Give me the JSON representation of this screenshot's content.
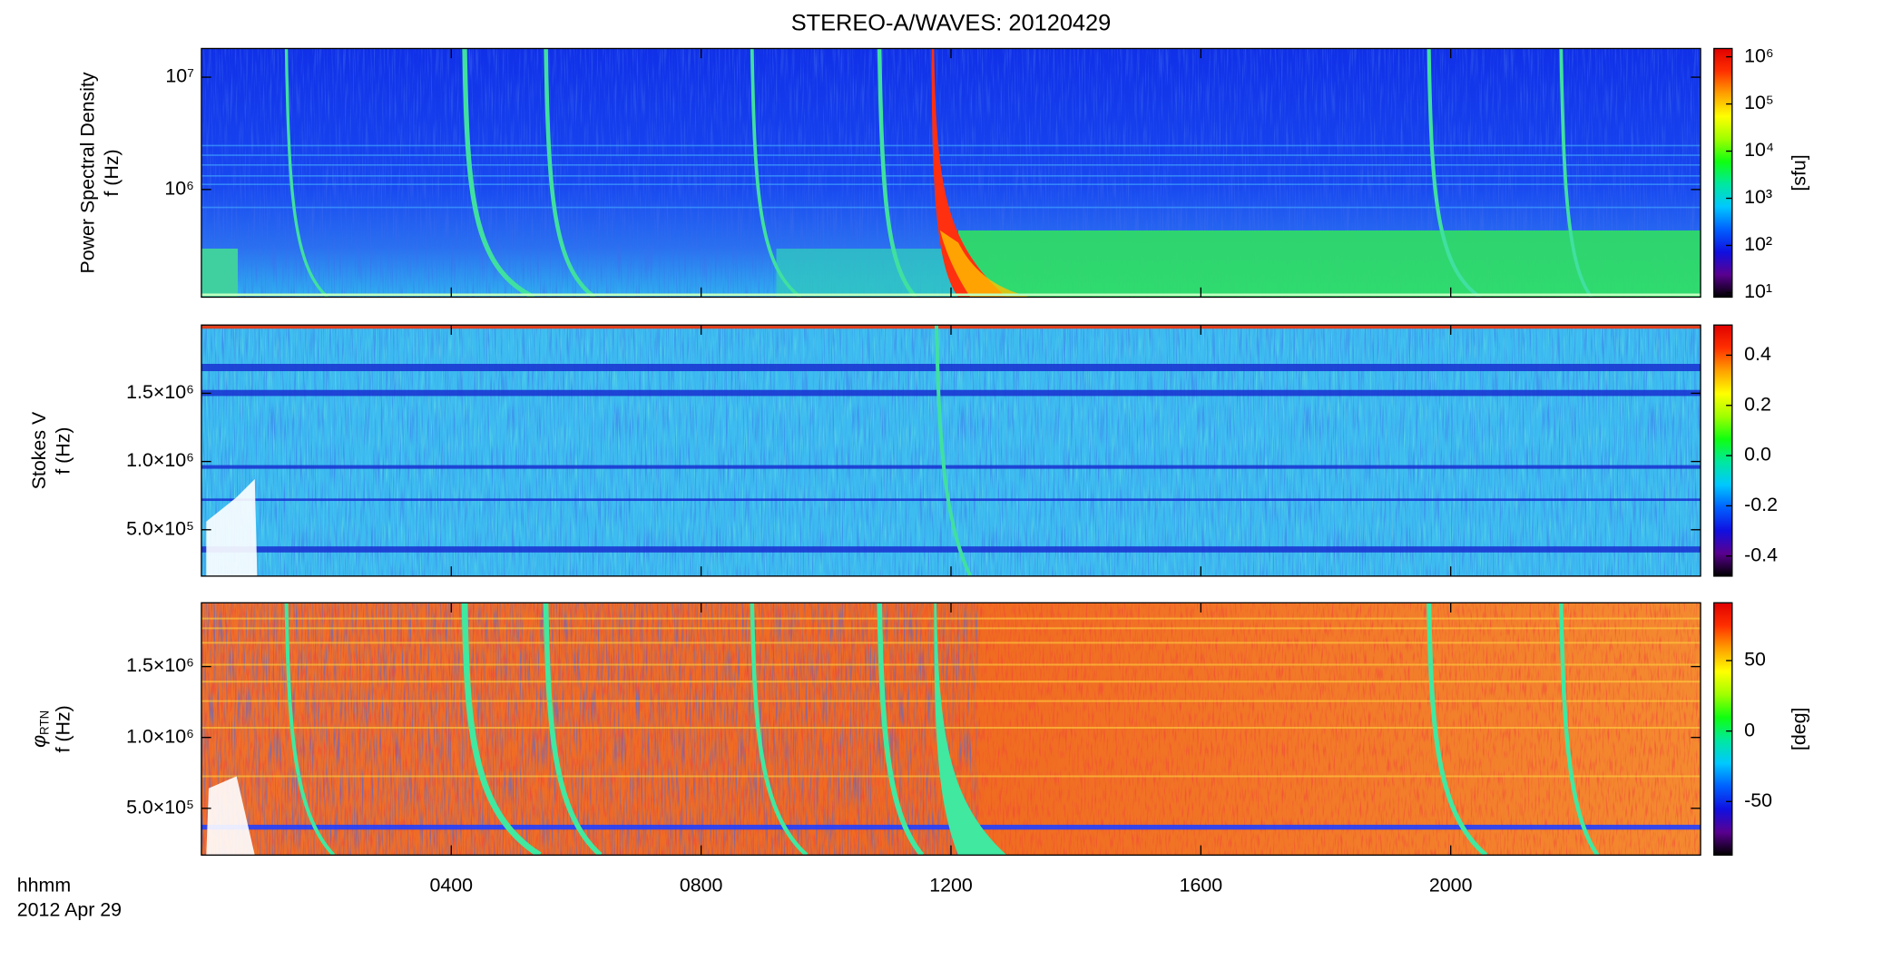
{
  "chart_data": {
    "type": "heatmap",
    "title": "STEREO-A/WAVES: 20120429",
    "xlabel": "hhmm",
    "date": "2012 Apr 29",
    "xlim": [
      0,
      24
    ],
    "xticks": [
      {
        "value": 4,
        "label": "0400"
      },
      {
        "value": 8,
        "label": "0800"
      },
      {
        "value": 12,
        "label": "1200"
      },
      {
        "value": 16,
        "label": "1600"
      },
      {
        "value": 20,
        "label": "2000"
      }
    ],
    "colorscale": [
      "#000000",
      "#5a0090",
      "#1010e0",
      "#0060ff",
      "#00c8ff",
      "#00e8a0",
      "#10ff10",
      "#a0ff00",
      "#ffff00",
      "#ffa000",
      "#ff3000",
      "#e00000"
    ],
    "panels": [
      {
        "ylabel": "Power Spectral Density",
        "ylabel2": "f (Hz)",
        "ylog": true,
        "ylim": [
          110000,
          18000000
        ],
        "yticks": [
          {
            "value": 1000000,
            "label": "10⁶"
          },
          {
            "value": 10000000,
            "label": "10⁷"
          }
        ],
        "clog": true,
        "clim": [
          8,
          1500000
        ],
        "cticks": [
          {
            "value": 10,
            "label": "10¹"
          },
          {
            "value": 100,
            "label": "10²"
          },
          {
            "value": 1000,
            "label": "10³"
          },
          {
            "value": 10000,
            "label": "10⁴"
          },
          {
            "value": 100000,
            "label": "10⁵"
          },
          {
            "value": 1000000,
            "label": "10⁶"
          }
        ],
        "clabel": "[sfu]"
      },
      {
        "ylabel": "Stokes V",
        "ylabel2": "f (Hz)",
        "ylim": [
          160000,
          2000000
        ],
        "yticks": [
          {
            "value": 500000,
            "label": "5.0×10⁵"
          },
          {
            "value": 1000000,
            "label": "1.0×10⁶"
          },
          {
            "value": 1500000,
            "label": "1.5×10⁶"
          }
        ],
        "clim": [
          -0.48,
          0.52
        ],
        "cticks": [
          -0.4,
          -0.2,
          {
            "value": 0,
            "label": "0.0"
          },
          0.2,
          0.4
        ]
      },
      {
        "ylabel": "φ",
        "ylabel_sub": "RTN",
        "ylabel2": "f (Hz)",
        "ylim": [
          170000,
          1950000
        ],
        "yticks": [
          {
            "value": 500000,
            "label": "5.0×10⁵"
          },
          {
            "value": 1000000,
            "label": "1.0×10⁶"
          },
          {
            "value": 1500000,
            "label": "1.5×10⁶"
          }
        ],
        "clim": [
          -88,
          91
        ],
        "cticks": [
          -50,
          0,
          50
        ],
        "clabel": "[deg]"
      }
    ]
  }
}
